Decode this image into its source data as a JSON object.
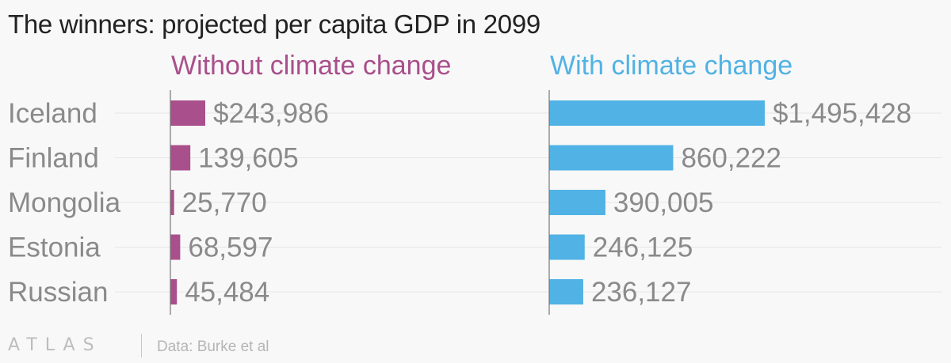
{
  "title": "The winners: projected per capita GDP in 2099",
  "footer": {
    "logo": "ATLAS",
    "source": "Data: Burke et al"
  },
  "chart_data": {
    "type": "bar",
    "orientation": "horizontal",
    "title": "The winners: projected per capita GDP in 2099",
    "categories": [
      "Iceland",
      "Finland",
      "Mongolia",
      "Estonia",
      "Russian"
    ],
    "series": [
      {
        "name": "Without climate change",
        "color": "#a94f8b",
        "values": [
          243986,
          139605,
          25770,
          68597,
          45484
        ],
        "labels": [
          "$243,986",
          "139,605",
          "25,770",
          "68,597",
          "45,484"
        ]
      },
      {
        "name": "With climate change",
        "color": "#51b2e5",
        "values": [
          1495428,
          860222,
          390005,
          246125,
          236127
        ],
        "labels": [
          "$1,495,428",
          "860,222",
          "390,005",
          "246,125",
          "236,127"
        ]
      }
    ],
    "colors": {
      "category_label": "#8a8a8a",
      "value_label": "#8a8a8a",
      "gridline": "#e6e6e6",
      "baseline": "#777777"
    }
  }
}
